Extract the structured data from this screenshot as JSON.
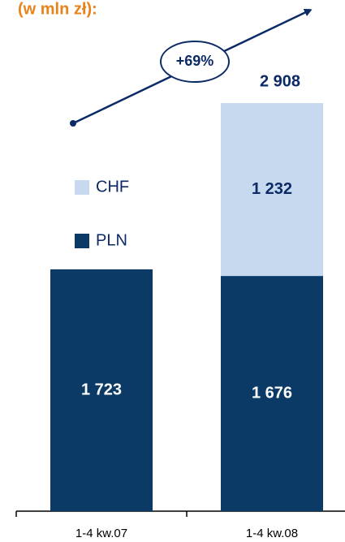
{
  "chart_data": {
    "type": "stacked_bar",
    "title": "(w mln zł):",
    "categories": [
      "1-4 kw.07",
      "1-4 kw.08"
    ],
    "series": [
      {
        "name": "PLN",
        "color": "#0b3a66",
        "values": [
          1723,
          1676
        ],
        "value_labels": [
          "1 723",
          "1 676"
        ]
      },
      {
        "name": "CHF",
        "color": "#c6d9ee",
        "values": [
          null,
          1232
        ],
        "value_labels": [
          null,
          "1 232"
        ]
      }
    ],
    "annotations": [
      {
        "text": "2 908"
      },
      {
        "text": "+69%"
      }
    ],
    "title_color": "#e8821a"
  }
}
